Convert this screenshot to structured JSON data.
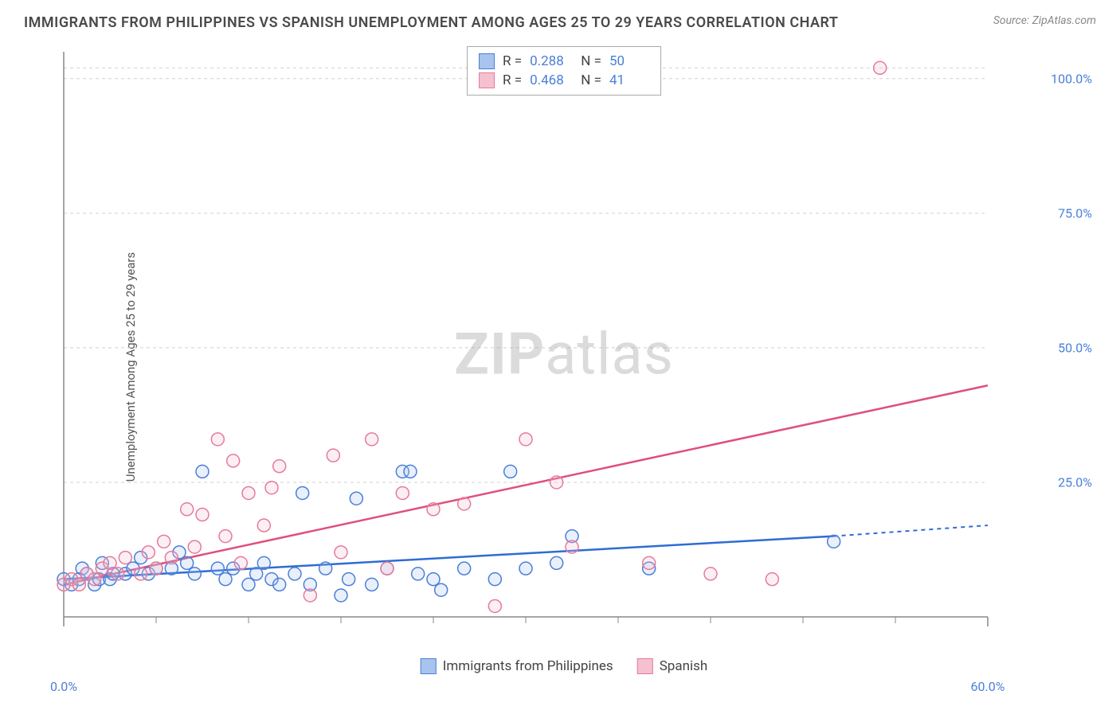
{
  "title": "IMMIGRANTS FROM PHILIPPINES VS SPANISH UNEMPLOYMENT AMONG AGES 25 TO 29 YEARS CORRELATION CHART",
  "source": "Source: ZipAtlas.com",
  "watermark_bold": "ZIP",
  "watermark_light": "atlas",
  "y_axis_label": "Unemployment Among Ages 25 to 29 years",
  "chart": {
    "type": "scatter",
    "xlim": [
      0,
      60
    ],
    "ylim": [
      0,
      105
    ],
    "x_ticks_major": [
      0,
      60
    ],
    "x_ticks_minor": [
      6,
      12,
      18,
      24,
      30,
      36,
      42,
      48,
      54
    ],
    "y_ticks": [
      25,
      50,
      75,
      100
    ],
    "x_tick_labels": {
      "0": "0.0%",
      "60": "60.0%"
    },
    "y_tick_labels": {
      "25": "25.0%",
      "50": "50.0%",
      "75": "75.0%",
      "100": "100.0%"
    },
    "grid_color": "#d0d0d0",
    "grid_dash": "4,4",
    "axis_color": "#888",
    "background_color": "#ffffff",
    "marker_radius": 8,
    "marker_stroke_width": 1.5,
    "marker_fill_opacity": 0.25,
    "series": [
      {
        "name": "Immigrants from Philippines",
        "color_stroke": "#4a7fd8",
        "color_fill": "#a8c4ee",
        "line_color": "#2e6cd4",
        "r": "0.288",
        "n": "50",
        "trend": {
          "x1": 0,
          "y1": 7,
          "x2": 50,
          "y2": 15,
          "x2_dash": 60,
          "y2_dash": 17
        },
        "points": [
          [
            0,
            7
          ],
          [
            0.5,
            6
          ],
          [
            1,
            7
          ],
          [
            1.2,
            9
          ],
          [
            1.5,
            8
          ],
          [
            2,
            6
          ],
          [
            2.3,
            7
          ],
          [
            2.5,
            10
          ],
          [
            3,
            7
          ],
          [
            3.2,
            8
          ],
          [
            4,
            8
          ],
          [
            4.5,
            9
          ],
          [
            5,
            11
          ],
          [
            5.5,
            8
          ],
          [
            6,
            9
          ],
          [
            7,
            9
          ],
          [
            7.5,
            12
          ],
          [
            8,
            10
          ],
          [
            8.5,
            8
          ],
          [
            9,
            27
          ],
          [
            10,
            9
          ],
          [
            10.5,
            7
          ],
          [
            11,
            9
          ],
          [
            12,
            6
          ],
          [
            12.5,
            8
          ],
          [
            13,
            10
          ],
          [
            13.5,
            7
          ],
          [
            14,
            6
          ],
          [
            15,
            8
          ],
          [
            15.5,
            23
          ],
          [
            16,
            6
          ],
          [
            17,
            9
          ],
          [
            18,
            4
          ],
          [
            18.5,
            7
          ],
          [
            19,
            22
          ],
          [
            20,
            6
          ],
          [
            21,
            9
          ],
          [
            22,
            27
          ],
          [
            22.5,
            27
          ],
          [
            23,
            8
          ],
          [
            24,
            7
          ],
          [
            24.5,
            5
          ],
          [
            26,
            9
          ],
          [
            28,
            7
          ],
          [
            29,
            27
          ],
          [
            30,
            9
          ],
          [
            32,
            10
          ],
          [
            33,
            15
          ],
          [
            38,
            9
          ],
          [
            50,
            14
          ]
        ]
      },
      {
        "name": "Spanish",
        "color_stroke": "#e67a9a",
        "color_fill": "#f5c0d0",
        "line_color": "#e04f7b",
        "r": "0.468",
        "n": "41",
        "trend": {
          "x1": 0,
          "y1": 6,
          "x2": 60,
          "y2": 43
        },
        "points": [
          [
            0,
            6
          ],
          [
            0.5,
            7
          ],
          [
            1,
            6
          ],
          [
            1.5,
            8
          ],
          [
            2,
            7
          ],
          [
            2.5,
            9
          ],
          [
            3,
            10
          ],
          [
            3.5,
            8
          ],
          [
            4,
            11
          ],
          [
            5,
            8
          ],
          [
            5.5,
            12
          ],
          [
            6,
            9
          ],
          [
            6.5,
            14
          ],
          [
            7,
            11
          ],
          [
            8,
            20
          ],
          [
            8.5,
            13
          ],
          [
            9,
            19
          ],
          [
            10,
            33
          ],
          [
            10.5,
            15
          ],
          [
            11,
            29
          ],
          [
            11.5,
            10
          ],
          [
            12,
            23
          ],
          [
            13,
            17
          ],
          [
            13.5,
            24
          ],
          [
            14,
            28
          ],
          [
            16,
            4
          ],
          [
            17.5,
            30
          ],
          [
            18,
            12
          ],
          [
            20,
            33
          ],
          [
            21,
            9
          ],
          [
            22,
            23
          ],
          [
            24,
            20
          ],
          [
            26,
            21
          ],
          [
            28,
            2
          ],
          [
            30,
            33
          ],
          [
            32,
            25
          ],
          [
            33,
            13
          ],
          [
            38,
            10
          ],
          [
            42,
            8
          ],
          [
            46,
            7
          ],
          [
            53,
            102
          ]
        ]
      }
    ]
  },
  "legend_bottom": [
    {
      "swatch_fill": "#a8c4ee",
      "swatch_stroke": "#4a7fd8",
      "label": "Immigrants from Philippines"
    },
    {
      "swatch_fill": "#f5c0d0",
      "swatch_stroke": "#e67a9a",
      "label": "Spanish"
    }
  ]
}
